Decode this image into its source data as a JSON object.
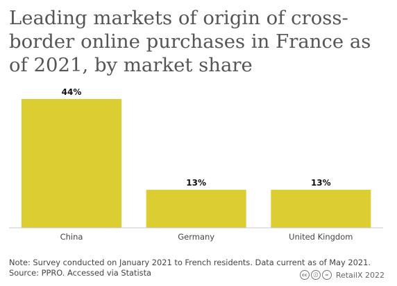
{
  "title": "Leading markets of origin of cross-border online purchases in France as of 2021, by market share",
  "chart_data": {
    "type": "bar",
    "categories": [
      "China",
      "Germany",
      "United Kingdom"
    ],
    "values": [
      44,
      13,
      13
    ],
    "value_labels": [
      "44%",
      "13%",
      "13%"
    ],
    "title": "Leading markets of origin of cross-border online purchases in France as of 2021, by market share",
    "xlabel": "",
    "ylabel": "",
    "ylim": [
      0,
      44
    ],
    "grid": false,
    "bar_color": "#dccd32"
  },
  "notes": {
    "note": "Note: Survey conducted on January 2021 to French residents. Data current as of May 2021.",
    "source": "Source: PPRO. Accessed via Statista"
  },
  "credit": {
    "license_icons": [
      "creative-commons-icon",
      "attribution-icon",
      "noderivatives-icon"
    ],
    "text": "RetailX 2022"
  },
  "colors": {
    "bar": "#dccd32",
    "title": "#555555",
    "axis": "#c8c8c8"
  }
}
